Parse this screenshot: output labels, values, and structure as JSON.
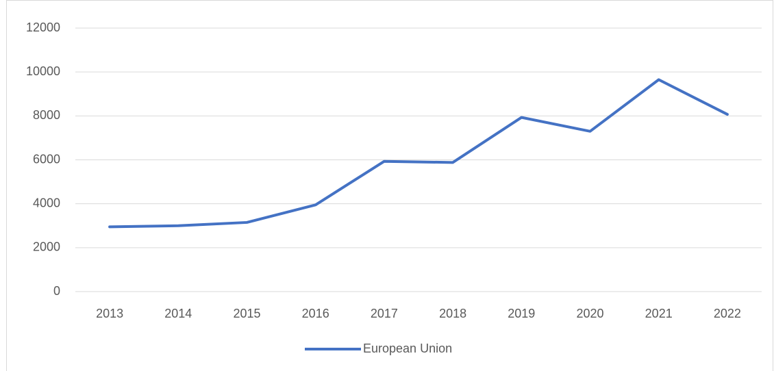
{
  "chart_data": {
    "type": "line",
    "categories": [
      "2013",
      "2014",
      "2015",
      "2016",
      "2017",
      "2018",
      "2019",
      "2020",
      "2021",
      "2022"
    ],
    "series": [
      {
        "name": "European Union",
        "color": "#4472c4",
        "values": [
          2950,
          3000,
          3150,
          3950,
          5930,
          5880,
          7930,
          7300,
          9650,
          8070
        ]
      }
    ],
    "ylim": [
      0,
      12000
    ],
    "yticks": [
      0,
      2000,
      4000,
      6000,
      8000,
      10000,
      12000
    ],
    "grid": true,
    "legend": "bottom"
  }
}
